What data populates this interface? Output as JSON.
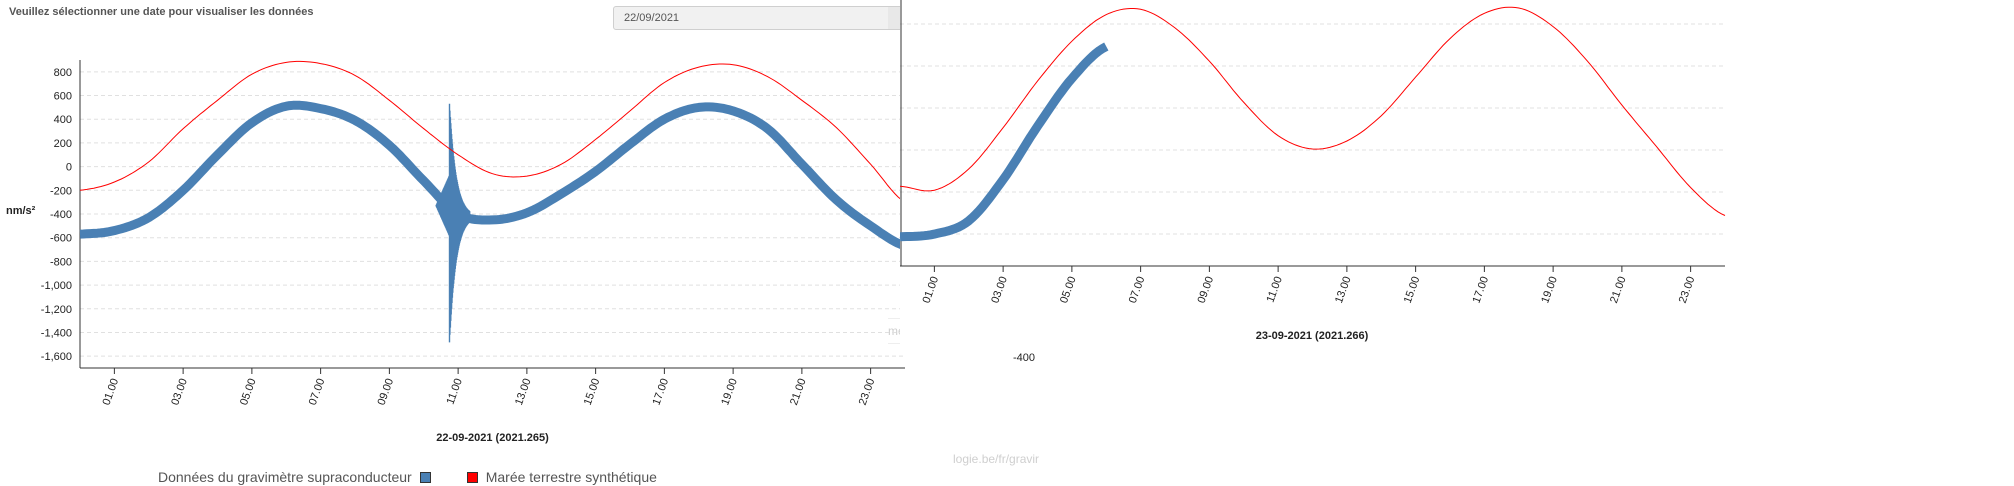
{
  "header": {
    "prompt": "Veuillez sélectionner une date pour visualiser les données",
    "date_value": "22/09/2021"
  },
  "background": {
    "fragment_text": "mètre",
    "url_fragment": "logie.be/fr/gravir",
    "stray_label": "-400"
  },
  "legend": {
    "observed": "Données du gravimètre supraconducteur",
    "synthetic": "Marée terrestre synthétique"
  },
  "colors": {
    "observed": "#4a80b4",
    "synthetic": "#ff0000",
    "grid": "#e0e0e0",
    "axis": "#333333"
  },
  "chart_data": [
    {
      "type": "line",
      "title": "",
      "ylabel": "nm/s²",
      "xlabel": "22-09-2021 (2021.265)",
      "ylim": [
        -1700,
        900
      ],
      "xlim": [
        0,
        24
      ],
      "yticks": [
        "800",
        "600",
        "400",
        "200",
        "0",
        "-200",
        "-400",
        "-600",
        "-800",
        "-1,000",
        "-1,200",
        "-1,400",
        "-1,600"
      ],
      "yvals": [
        800,
        600,
        400,
        200,
        0,
        -200,
        -400,
        -600,
        -800,
        -1000,
        -1200,
        -1400,
        -1600
      ],
      "xticks": [
        "01.00",
        "03.00",
        "05.00",
        "07.00",
        "09.00",
        "11.00",
        "13.00",
        "15.00",
        "17.00",
        "19.00",
        "21.00",
        "23.00"
      ],
      "xtick_hours": [
        1,
        3,
        5,
        7,
        9,
        11,
        13,
        15,
        17,
        19,
        21,
        23
      ],
      "series": [
        {
          "name": "Marée terrestre synthétique",
          "x": [
            0,
            1,
            2,
            3,
            4,
            5,
            6,
            7,
            8,
            9,
            10,
            11,
            12,
            13,
            14,
            15,
            16,
            17,
            18,
            19,
            20,
            21,
            22,
            23,
            24
          ],
          "y": [
            -200,
            -130,
            40,
            320,
            560,
            780,
            880,
            870,
            770,
            560,
            320,
            100,
            -60,
            -80,
            20,
            230,
            470,
            710,
            840,
            860,
            760,
            560,
            330,
            20,
            -300
          ]
        },
        {
          "name": "Données du gravimètre supraconducteur",
          "x": [
            0,
            1,
            2,
            3,
            4,
            5,
            6,
            7,
            8,
            9,
            10,
            11,
            12,
            13,
            14,
            15,
            16,
            17,
            18,
            19,
            20,
            21,
            22,
            23,
            24
          ],
          "y": [
            -570,
            -540,
            -430,
            -200,
            100,
            370,
            510,
            490,
            390,
            180,
            -120,
            -400,
            -450,
            -390,
            -230,
            -40,
            190,
            400,
            500,
            470,
            320,
            20,
            -280,
            -500,
            -670
          ]
        }
      ]
    },
    {
      "type": "line",
      "title": "",
      "xlabel": "23-09-2021 (2021.266)",
      "xlim": [
        0,
        24
      ],
      "xticks": [
        "01.00",
        "03.00",
        "05.00",
        "07.00",
        "09.00",
        "11.00",
        "13.00",
        "15.00",
        "17.00",
        "19.00",
        "21.00",
        "23.00"
      ],
      "xtick_hours": [
        1,
        3,
        5,
        7,
        9,
        11,
        13,
        15,
        17,
        19,
        21,
        23
      ],
      "series": [
        {
          "name": "Marée terrestre synthétique",
          "x": [
            0,
            1,
            2,
            3,
            4,
            5,
            6,
            7,
            8,
            9,
            10,
            11,
            12,
            13,
            14,
            15,
            16,
            17,
            18,
            19,
            20,
            21,
            22,
            23,
            24
          ],
          "y": [
            -300,
            -330,
            -170,
            140,
            490,
            790,
            990,
            1030,
            890,
            640,
            330,
            80,
            -20,
            40,
            230,
            520,
            810,
            1000,
            1040,
            900,
            640,
            310,
            0,
            -310,
            -520
          ]
        },
        {
          "name": "Données du gravimètre supraconducteur",
          "x": [
            0,
            1,
            2,
            3,
            4,
            5,
            6
          ],
          "y": [
            -680,
            -660,
            -560,
            -250,
            150,
            510,
            750
          ]
        }
      ]
    }
  ]
}
